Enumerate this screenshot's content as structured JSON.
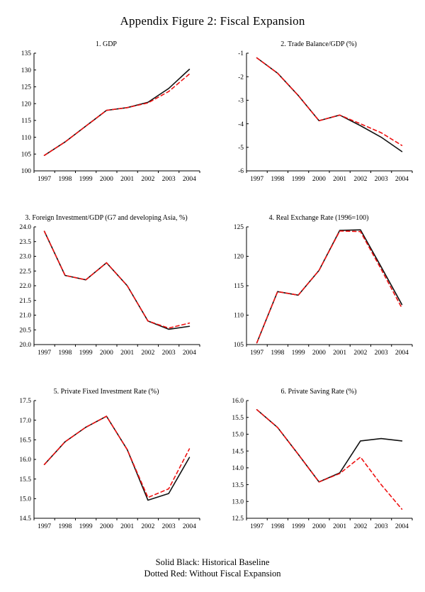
{
  "page": {
    "title": "Appendix Figure 2: Fiscal Expansion",
    "footer_line1": "Solid Black: Historical Baseline",
    "footer_line2": "Dotted Red: Without Fiscal Expansion"
  },
  "colors": {
    "baseline": "#111111",
    "counterfactual": "#ee1111"
  },
  "chart_data": [
    {
      "type": "line",
      "title": "1. GDP",
      "categories": [
        "1997",
        "1998",
        "1999",
        "2000",
        "2001",
        "2002",
        "2003",
        "2004"
      ],
      "ylim": [
        100,
        135
      ],
      "ystep": 5,
      "ydecimals": 0,
      "grid": false,
      "series": [
        {
          "name": "Historical Baseline",
          "style": "solid",
          "color": "#111111",
          "values": [
            104.6,
            108.6,
            113.3,
            118.0,
            118.8,
            120.4,
            124.5,
            130.2
          ]
        },
        {
          "name": "Without Fiscal Expansion",
          "style": "dashed",
          "color": "#ee1111",
          "values": [
            104.6,
            108.6,
            113.3,
            118.0,
            118.8,
            120.2,
            123.6,
            128.8
          ]
        }
      ]
    },
    {
      "type": "line",
      "title": "2. Trade Balance/GDP (%)",
      "categories": [
        "1997",
        "1998",
        "1999",
        "2000",
        "2001",
        "2002",
        "2003",
        "2004"
      ],
      "ylim": [
        -6,
        -1
      ],
      "ystep": 1,
      "ydecimals": 0,
      "grid": false,
      "series": [
        {
          "name": "Historical Baseline",
          "style": "solid",
          "color": "#111111",
          "values": [
            -1.2,
            -1.85,
            -2.8,
            -3.87,
            -3.63,
            -4.08,
            -4.57,
            -5.18
          ]
        },
        {
          "name": "Without Fiscal Expansion",
          "style": "dashed",
          "color": "#ee1111",
          "values": [
            -1.2,
            -1.85,
            -2.8,
            -3.87,
            -3.63,
            -4.0,
            -4.38,
            -4.92
          ]
        }
      ]
    },
    {
      "type": "line",
      "title": "3. Foreign Investment/GDP (G7 and developing Asia, %)",
      "categories": [
        "1997",
        "1998",
        "1999",
        "2000",
        "2001",
        "2002",
        "2003",
        "2004"
      ],
      "ylim": [
        20.0,
        24.0
      ],
      "ystep": 0.5,
      "ydecimals": 1,
      "grid": false,
      "series": [
        {
          "name": "Historical Baseline",
          "style": "solid",
          "color": "#111111",
          "values": [
            23.85,
            22.35,
            22.2,
            22.78,
            22.0,
            20.8,
            20.52,
            20.62
          ]
        },
        {
          "name": "Without Fiscal Expansion",
          "style": "dashed",
          "color": "#ee1111",
          "values": [
            23.85,
            22.35,
            22.2,
            22.78,
            22.0,
            20.8,
            20.56,
            20.73
          ]
        }
      ]
    },
    {
      "type": "line",
      "title": "4. Real Exchange Rate (1996=100)",
      "categories": [
        "1997",
        "1998",
        "1999",
        "2000",
        "2001",
        "2002",
        "2003",
        "2004"
      ],
      "ylim": [
        105,
        125
      ],
      "ystep": 5,
      "ydecimals": 0,
      "grid": false,
      "series": [
        {
          "name": "Historical Baseline",
          "style": "solid",
          "color": "#111111",
          "values": [
            105.3,
            114.0,
            113.4,
            117.6,
            124.4,
            124.5,
            118.2,
            111.8
          ]
        },
        {
          "name": "Without Fiscal Expansion",
          "style": "dashed",
          "color": "#ee1111",
          "values": [
            105.3,
            114.0,
            113.4,
            117.6,
            124.3,
            124.2,
            117.8,
            111.2
          ]
        }
      ]
    },
    {
      "type": "line",
      "title": "5. Private Fixed Investment Rate (%)",
      "categories": [
        "1997",
        "1998",
        "1999",
        "2000",
        "2001",
        "2002",
        "2003",
        "2004"
      ],
      "ylim": [
        14.5,
        17.5
      ],
      "ystep": 0.5,
      "ydecimals": 1,
      "grid": false,
      "series": [
        {
          "name": "Historical Baseline",
          "style": "solid",
          "color": "#111111",
          "values": [
            15.87,
            16.45,
            16.82,
            17.1,
            16.25,
            14.96,
            15.13,
            16.05
          ]
        },
        {
          "name": "Without Fiscal Expansion",
          "style": "dashed",
          "color": "#ee1111",
          "values": [
            15.87,
            16.45,
            16.82,
            17.1,
            16.25,
            15.03,
            15.25,
            16.27
          ]
        }
      ]
    },
    {
      "type": "line",
      "title": "6. Private Saving Rate (%)",
      "categories": [
        "1997",
        "1998",
        "1999",
        "2000",
        "2001",
        "2002",
        "2003",
        "2004"
      ],
      "ylim": [
        12.5,
        16.0
      ],
      "ystep": 0.5,
      "ydecimals": 1,
      "grid": false,
      "series": [
        {
          "name": "Historical Baseline",
          "style": "solid",
          "color": "#111111",
          "values": [
            15.73,
            15.2,
            14.4,
            13.58,
            13.85,
            14.8,
            14.87,
            14.8
          ]
        },
        {
          "name": "Without Fiscal Expansion",
          "style": "dashed",
          "color": "#ee1111",
          "values": [
            15.73,
            15.2,
            14.4,
            13.58,
            13.83,
            14.32,
            13.5,
            12.77
          ]
        }
      ]
    }
  ]
}
